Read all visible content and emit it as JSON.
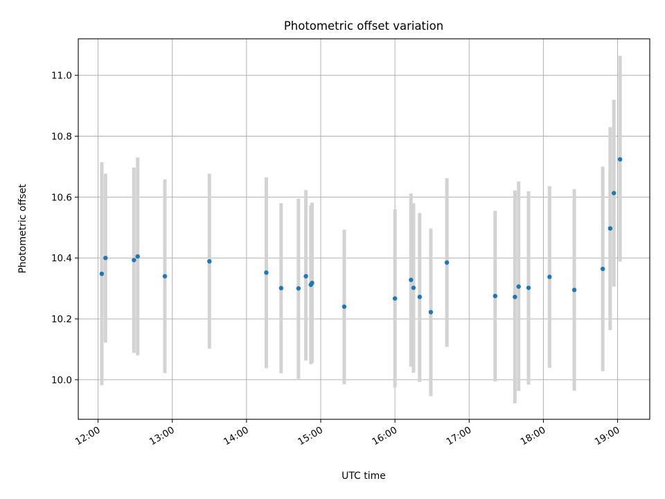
{
  "chart_data": {
    "type": "scatter",
    "title": "Photometric offset variation",
    "xlabel": "UTC time",
    "ylabel": "Photometric offset",
    "x_tick_labels": [
      "12:00",
      "13:00",
      "14:00",
      "15:00",
      "16:00",
      "17:00",
      "18:00",
      "19:00"
    ],
    "y_tick_labels": [
      "10.0",
      "10.2",
      "10.4",
      "10.6",
      "10.8",
      "11.0"
    ],
    "y_ticks": [
      10.0,
      10.2,
      10.4,
      10.6,
      10.8,
      11.0
    ],
    "xlim": [
      "11:44",
      "19:26"
    ],
    "ylim": [
      9.87,
      11.12
    ],
    "grid": true,
    "marker_color": "#1f77b4",
    "errorbar_color": "#d3d3d3",
    "points": [
      {
        "x": "12:03",
        "y": 10.348,
        "ylo": 9.982,
        "yhi": 10.715
      },
      {
        "x": "12:06",
        "y": 10.4,
        "ylo": 10.122,
        "yhi": 10.677
      },
      {
        "x": "12:29",
        "y": 10.393,
        "ylo": 10.088,
        "yhi": 10.697
      },
      {
        "x": "12:32",
        "y": 10.405,
        "ylo": 10.08,
        "yhi": 10.73
      },
      {
        "x": "12:54",
        "y": 10.34,
        "ylo": 10.022,
        "yhi": 10.658
      },
      {
        "x": "13:30",
        "y": 10.389,
        "ylo": 10.102,
        "yhi": 10.677
      },
      {
        "x": "14:16",
        "y": 10.352,
        "ylo": 10.038,
        "yhi": 10.665
      },
      {
        "x": "14:28",
        "y": 10.301,
        "ylo": 10.021,
        "yhi": 10.58
      },
      {
        "x": "14:42",
        "y": 10.3,
        "ylo": 10.003,
        "yhi": 10.595
      },
      {
        "x": "14:48",
        "y": 10.34,
        "ylo": 10.063,
        "yhi": 10.623
      },
      {
        "x": "14:52",
        "y": 10.312,
        "ylo": 10.051,
        "yhi": 10.573
      },
      {
        "x": "14:53",
        "y": 10.318,
        "ylo": 10.055,
        "yhi": 10.582
      },
      {
        "x": "15:19",
        "y": 10.24,
        "ylo": 9.985,
        "yhi": 10.493
      },
      {
        "x": "16:00",
        "y": 10.267,
        "ylo": 9.975,
        "yhi": 10.56
      },
      {
        "x": "16:13",
        "y": 10.328,
        "ylo": 10.043,
        "yhi": 10.612
      },
      {
        "x": "16:15",
        "y": 10.302,
        "ylo": 10.023,
        "yhi": 10.58
      },
      {
        "x": "16:20",
        "y": 10.272,
        "ylo": 9.993,
        "yhi": 10.548
      },
      {
        "x": "16:29",
        "y": 10.222,
        "ylo": 9.946,
        "yhi": 10.497
      },
      {
        "x": "16:42",
        "y": 10.385,
        "ylo": 10.108,
        "yhi": 10.662
      },
      {
        "x": "17:21",
        "y": 10.275,
        "ylo": 9.994,
        "yhi": 10.555
      },
      {
        "x": "17:37",
        "y": 10.272,
        "ylo": 9.922,
        "yhi": 10.622
      },
      {
        "x": "17:40",
        "y": 10.306,
        "ylo": 9.963,
        "yhi": 10.651
      },
      {
        "x": "17:48",
        "y": 10.302,
        "ylo": 9.984,
        "yhi": 10.619
      },
      {
        "x": "18:05",
        "y": 10.338,
        "ylo": 10.039,
        "yhi": 10.636
      },
      {
        "x": "18:25",
        "y": 10.295,
        "ylo": 9.964,
        "yhi": 10.626
      },
      {
        "x": "18:48",
        "y": 10.364,
        "ylo": 10.028,
        "yhi": 10.7
      },
      {
        "x": "18:54",
        "y": 10.497,
        "ylo": 10.163,
        "yhi": 10.83
      },
      {
        "x": "18:57",
        "y": 10.613,
        "ylo": 10.306,
        "yhi": 10.92
      },
      {
        "x": "19:02",
        "y": 10.724,
        "ylo": 10.388,
        "yhi": 11.064
      }
    ]
  }
}
